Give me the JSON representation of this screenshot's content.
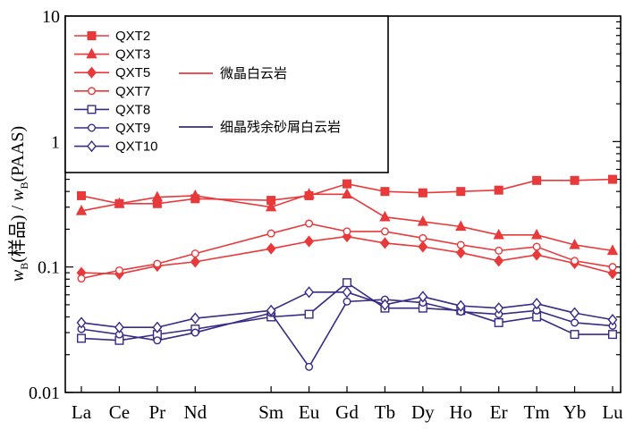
{
  "chart_data": {
    "type": "line",
    "y_scale": "log",
    "ylim": [
      0.01,
      10
    ],
    "ylabel_parts": {
      "main1": "w",
      "sub1": "B",
      "mid": "(样品) / ",
      "main2": "w",
      "sub2": "B",
      "tail": "(PAAS)"
    },
    "yticks": [
      {
        "value": 10,
        "label": "10"
      },
      {
        "value": 1,
        "label": "1"
      },
      {
        "value": 0.1,
        "label": "0.1"
      },
      {
        "value": 0.01,
        "label": "0.01"
      }
    ],
    "categories": [
      "La",
      "Ce",
      "Pr",
      "Nd",
      "Sm",
      "Eu",
      "Gd",
      "Tb",
      "Dy",
      "Ho",
      "Er",
      "Tm",
      "Yb",
      "Lu"
    ],
    "category_positions": [
      0,
      1,
      2,
      3,
      5,
      6,
      7,
      8,
      9,
      10,
      11,
      12,
      13,
      14
    ],
    "series": [
      {
        "name": "QXT2",
        "color": "#e8393b",
        "marker": "square-filled",
        "values": [
          0.37,
          0.32,
          0.32,
          0.35,
          0.34,
          0.37,
          0.46,
          0.4,
          0.39,
          0.4,
          0.41,
          0.49,
          0.49,
          0.5
        ]
      },
      {
        "name": "QXT3",
        "color": "#e8393b",
        "marker": "triangle-filled",
        "values": [
          0.28,
          0.32,
          0.36,
          0.37,
          0.3,
          0.38,
          0.38,
          0.25,
          0.23,
          0.21,
          0.18,
          0.18,
          0.15,
          0.135
        ]
      },
      {
        "name": "QXT5",
        "color": "#e8393b",
        "marker": "diamond-filled",
        "values": [
          0.09,
          0.088,
          0.102,
          0.11,
          0.14,
          0.16,
          0.175,
          0.155,
          0.145,
          0.13,
          0.112,
          0.125,
          0.107,
          0.089
        ]
      },
      {
        "name": "QXT7",
        "color": "#e8393b",
        "marker": "circle-open",
        "values": [
          0.081,
          0.094,
          0.106,
          0.128,
          0.185,
          0.222,
          0.192,
          0.192,
          0.17,
          0.15,
          0.135,
          0.145,
          0.112,
          0.1
        ]
      },
      {
        "name": "QXT8",
        "color": "#3a2a85",
        "marker": "square-open",
        "values": [
          0.027,
          0.026,
          0.029,
          0.032,
          0.04,
          0.042,
          0.075,
          0.047,
          0.047,
          0.045,
          0.036,
          0.04,
          0.029,
          0.029
        ]
      },
      {
        "name": "QXT9",
        "color": "#3a2a85",
        "marker": "circle-open",
        "values": [
          0.032,
          0.029,
          0.026,
          0.03,
          0.043,
          0.016,
          0.053,
          0.055,
          0.052,
          0.044,
          0.042,
          0.045,
          0.036,
          0.034
        ]
      },
      {
        "name": "QXT10",
        "color": "#3a2a85",
        "marker": "diamond-open",
        "values": [
          0.036,
          0.033,
          0.033,
          0.039,
          0.045,
          0.063,
          0.063,
          0.05,
          0.058,
          0.049,
          0.047,
          0.051,
          0.043,
          0.038
        ]
      }
    ],
    "group_legend": [
      {
        "label": "微晶白云岩",
        "color": "#e8393b"
      },
      {
        "label": "细晶残余砂屑白云岩",
        "color": "#3a2a85"
      }
    ],
    "legend_position": "top-left"
  }
}
